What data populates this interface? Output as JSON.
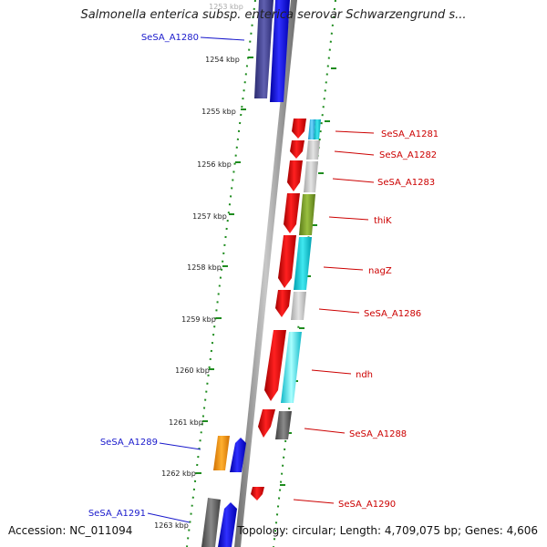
{
  "title": "Salmonella enterica subsp. enterica serovar Schwarzengrund s...",
  "footer": {
    "accession": "Accession: NC_011094",
    "topology": "Topology: circular; Length: 4,709,075 bp; Genes: 4,606"
  },
  "ticks": [
    "1253 kbp",
    "1254 kbp",
    "1255 kbp",
    "1256 kbp",
    "1257 kbp",
    "1258 kbp",
    "1259 kbp",
    "1260 kbp",
    "1261 kbp",
    "1262 kbp",
    "1263 kbp"
  ],
  "left_genes": [
    "SeSA_A1280",
    "SeSA_A1289",
    "SeSA_A1291"
  ],
  "right_genes": [
    "SeSA_A1281",
    "SeSA_A1282",
    "SeSA_A1283",
    "thiK",
    "nagZ",
    "SeSA_A1286",
    "ndh",
    "SeSA_A1288",
    "SeSA_A1290"
  ],
  "colors": {
    "forward_label": "#1a1acc",
    "reverse_label": "#cc0000",
    "dots": "#1e8c1e",
    "backbone": "#8a8a8a"
  }
}
